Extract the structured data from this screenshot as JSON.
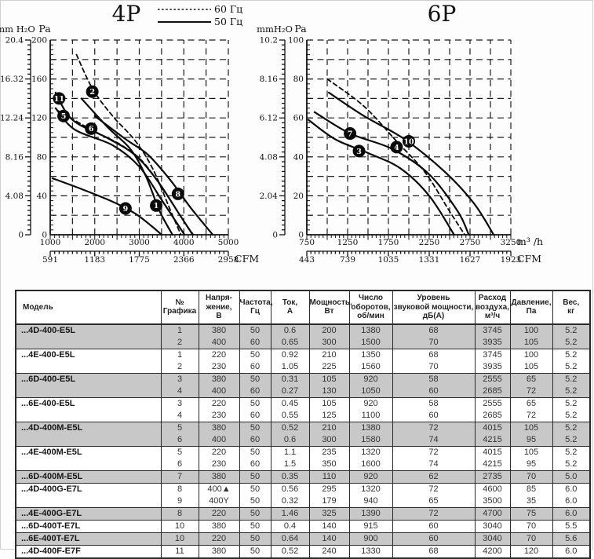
{
  "chart_data": [
    {
      "type": "line",
      "title": "4P",
      "legend": [
        {
          "style": "dashed",
          "label": "60 Гц"
        },
        {
          "style": "solid",
          "label": "50 Гц"
        }
      ],
      "y_axis_pa": {
        "label": "Pa",
        "range": [
          0,
          200
        ],
        "ticks": [
          0,
          40,
          80,
          120,
          160,
          200
        ],
        "minor_step": 5
      },
      "y_axis_mm": {
        "label": "mm H₂O",
        "ticks": [
          "0",
          "4.08",
          "8.16",
          "12.24",
          "16.32",
          "20.4"
        ]
      },
      "x_axis": {
        "unit": "",
        "range": [
          1000,
          5000
        ],
        "ticks": [
          1000,
          2000,
          3000,
          4000,
          5000
        ],
        "minor_step": 100
      },
      "x_axis_cfm": {
        "unit": "CFM",
        "ticks": [
          "591",
          "1183",
          "1775",
          "2366",
          "2958"
        ]
      },
      "grid": {
        "x_step": 500,
        "y_step": 20
      },
      "curves": [
        {
          "graph": "11",
          "style": "solid",
          "points": [
            [
              1120,
              146
            ],
            [
              1500,
              118
            ],
            [
              2300,
              99
            ],
            [
              2900,
              82
            ],
            [
              3400,
              56
            ],
            [
              3900,
              21
            ],
            [
              4200,
              0
            ]
          ],
          "marker_at": [
            1200,
            140
          ]
        },
        {
          "graph": "5",
          "style": "solid",
          "points": [
            [
              1120,
              130
            ],
            [
              1550,
              108
            ],
            [
              2400,
              92
            ],
            [
              3000,
              70
            ],
            [
              3500,
              36
            ],
            [
              4015,
              0
            ]
          ],
          "marker_at": [
            1300,
            122
          ]
        },
        {
          "graph": "1",
          "style": "solid",
          "points": [
            [
              1700,
              140
            ],
            [
              2300,
              110
            ],
            [
              2800,
              88
            ],
            [
              3150,
              60
            ],
            [
              3450,
              25
            ],
            [
              3745,
              0
            ]
          ],
          "marker_at": [
            3380,
            30
          ]
        },
        {
          "graph": "8",
          "style": "solid",
          "points": [
            [
              2000,
              122
            ],
            [
              2700,
              98
            ],
            [
              3200,
              82
            ],
            [
              3700,
              56
            ],
            [
              4150,
              28
            ],
            [
              4650,
              0
            ]
          ],
          "marker_at": [
            3870,
            42
          ]
        },
        {
          "graph": "9",
          "style": "solid",
          "points": [
            [
              1050,
              58
            ],
            [
              1700,
              47
            ],
            [
              2400,
              34
            ],
            [
              2900,
              22
            ],
            [
              3300,
              8
            ],
            [
              3500,
              0
            ]
          ],
          "marker_at": [
            2690,
            27
          ]
        },
        {
          "graph": "2",
          "style": "dashed",
          "points": [
            [
              1590,
              185
            ],
            [
              1950,
              150
            ],
            [
              2400,
              122
            ],
            [
              2900,
              97
            ],
            [
              3300,
              68
            ],
            [
              3700,
              25
            ],
            [
              3935,
              0
            ]
          ],
          "marker_at": [
            1945,
            147
          ]
        },
        {
          "graph": "6",
          "style": "dashed",
          "points": [
            [
              1150,
              128
            ],
            [
              1920,
              108
            ],
            [
              2600,
              92
            ],
            [
              3100,
              74
            ],
            [
              3600,
              42
            ],
            [
              4000,
              14
            ],
            [
              4215,
              0
            ]
          ],
          "marker_at": [
            1920,
            109
          ]
        }
      ]
    },
    {
      "type": "line",
      "title": "6P",
      "y_axis_pa": {
        "label": "Pa",
        "range": [
          0,
          100
        ],
        "ticks": [
          0,
          20,
          40,
          60,
          80,
          100
        ],
        "minor_step": 2.5
      },
      "y_axis_mm": {
        "label": "mmH₂O",
        "ticks": [
          "0",
          "2.04",
          "4.08",
          "6.12",
          "8.16",
          "10.2"
        ]
      },
      "x_axis": {
        "unit": "m³ /h",
        "range": [
          750,
          3250
        ],
        "ticks": [
          750,
          1250,
          1750,
          2250,
          2750,
          3250
        ],
        "minor_step": 50
      },
      "x_axis_cfm": {
        "unit": "CFM",
        "ticks": [
          "443",
          "739",
          "1035",
          "1331",
          "1627",
          "1923"
        ]
      },
      "grid": {
        "x_step": 250,
        "y_step": 10
      },
      "curves": [
        {
          "graph": "10",
          "style": "solid",
          "points": [
            [
              1020,
              73
            ],
            [
              1450,
              61
            ],
            [
              1950,
              49
            ],
            [
              2450,
              32
            ],
            [
              2800,
              16
            ],
            [
              3040,
              0
            ]
          ],
          "marker_at": [
            2000,
            48
          ]
        },
        {
          "graph": "7",
          "style": "solid",
          "points": [
            [
              845,
              63
            ],
            [
              1280,
              52
            ],
            [
              1800,
              44
            ],
            [
              2250,
              31
            ],
            [
              2600,
              12
            ],
            [
              2735,
              0
            ]
          ],
          "marker_at": [
            1280,
            52
          ]
        },
        {
          "graph": "3",
          "style": "solid",
          "points": [
            [
              770,
              59
            ],
            [
              1100,
              49
            ],
            [
              1500,
              42
            ],
            [
              1900,
              34
            ],
            [
              2250,
              20
            ],
            [
              2555,
              0
            ]
          ],
          "marker_at": [
            1390,
            43
          ]
        },
        {
          "graph": "4",
          "style": "dashed",
          "points": [
            [
              1000,
              80
            ],
            [
              1450,
              66
            ],
            [
              1850,
              48
            ],
            [
              2200,
              32
            ],
            [
              2500,
              12
            ],
            [
              2685,
              0
            ]
          ],
          "marker_at": [
            1850,
            45
          ]
        }
      ]
    }
  ],
  "table": {
    "headers": [
      "Модель",
      "№\nГрафика",
      "Напря-\nжение,\nВ",
      "Частота,\nГц",
      "Ток,\nА",
      "Мощность,\nВт",
      "Число\nоборотов,\nоб/мин",
      "Уровень\nзвуковой мощности,\nдБ(А)",
      "Расход\nвоздуха,\nм³/ч",
      "Давление,\nПа",
      "Вес,\nкг"
    ],
    "groups": [
      {
        "model": "...4D-400-E5L",
        "rows": [
          [
            "1",
            "380",
            "50",
            "0.6",
            "200",
            "1380",
            "68",
            "3745",
            "100",
            "5.2"
          ],
          [
            "2",
            "400",
            "60",
            "0.65",
            "300",
            "1500",
            "70",
            "3935",
            "105",
            "5.2"
          ]
        ]
      },
      {
        "model": "...4E-400-E5L",
        "rows": [
          [
            "1",
            "220",
            "50",
            "0.92",
            "210",
            "1350",
            "68",
            "3745",
            "100",
            "5.2"
          ],
          [
            "2",
            "230",
            "60",
            "1.05",
            "225",
            "1560",
            "70",
            "3935",
            "105",
            "5.2"
          ]
        ]
      },
      {
        "model": "...6D-400-E5L",
        "rows": [
          [
            "3",
            "380",
            "50",
            "0.31",
            "105",
            "920",
            "58",
            "2555",
            "65",
            "5.2"
          ],
          [
            "4",
            "400",
            "60",
            "0.27",
            "130",
            "1050",
            "60",
            "2685",
            "72",
            "5.2"
          ]
        ]
      },
      {
        "model": "...6E-400-E5L",
        "rows": [
          [
            "3",
            "220",
            "50",
            "0.45",
            "105",
            "920",
            "58",
            "2555",
            "65",
            "5.2"
          ],
          [
            "4",
            "230",
            "60",
            "0.55",
            "125",
            "1100",
            "60",
            "2685",
            "72",
            "5.2"
          ]
        ]
      },
      {
        "model": "...4D-400M-E5L",
        "rows": [
          [
            "5",
            "380",
            "50",
            "0.52",
            "210",
            "1380",
            "72",
            "4015",
            "105",
            "5.2"
          ],
          [
            "6",
            "400",
            "60",
            "0.6",
            "300",
            "1580",
            "74",
            "4215",
            "95",
            "5.2"
          ]
        ]
      },
      {
        "model": "...4E-400M-E5L",
        "rows": [
          [
            "5",
            "220",
            "50",
            "1.1",
            "235",
            "1320",
            "72",
            "4015",
            "105",
            "5.2"
          ],
          [
            "6",
            "230",
            "60",
            "1.5",
            "350",
            "1600",
            "74",
            "4215",
            "95",
            "5.2"
          ]
        ]
      },
      {
        "model": "...6D-400M-E5L",
        "rows": [
          [
            "7",
            "380",
            "50",
            "0.35",
            "110",
            "920",
            "62",
            "2735",
            "70",
            "5.0"
          ]
        ]
      },
      {
        "model": "...4D-400G-E7L",
        "rows": [
          [
            "8",
            "400▲",
            "50",
            "0.56",
            "295",
            "1320",
            "72",
            "4600",
            "85",
            "6.0"
          ],
          [
            "9",
            "400Y",
            "50",
            "0.32",
            "179",
            "940",
            "65",
            "3500",
            "35",
            "6.0"
          ]
        ]
      },
      {
        "model": "...4E-400G-E7L",
        "rows": [
          [
            "8",
            "220",
            "50",
            "1.46",
            "325",
            "1390",
            "72",
            "4700",
            "75",
            "6.0"
          ]
        ]
      },
      {
        "model": "...6D-400T-E7L",
        "rows": [
          [
            "10",
            "380",
            "50",
            "0.4",
            "140",
            "915",
            "60",
            "3040",
            "70",
            "5.5"
          ]
        ]
      },
      {
        "model": "...6E-400T-E7L",
        "rows": [
          [
            "10",
            "220",
            "50",
            "0.64",
            "140",
            "900",
            "60",
            "3040",
            "70",
            "5.6"
          ]
        ]
      },
      {
        "model": "...4D-400F-E7F",
        "rows": [
          [
            "11",
            "380",
            "50",
            "0.52",
            "240",
            "1330",
            "68",
            "4200",
            "120",
            "6.0"
          ]
        ]
      }
    ]
  }
}
